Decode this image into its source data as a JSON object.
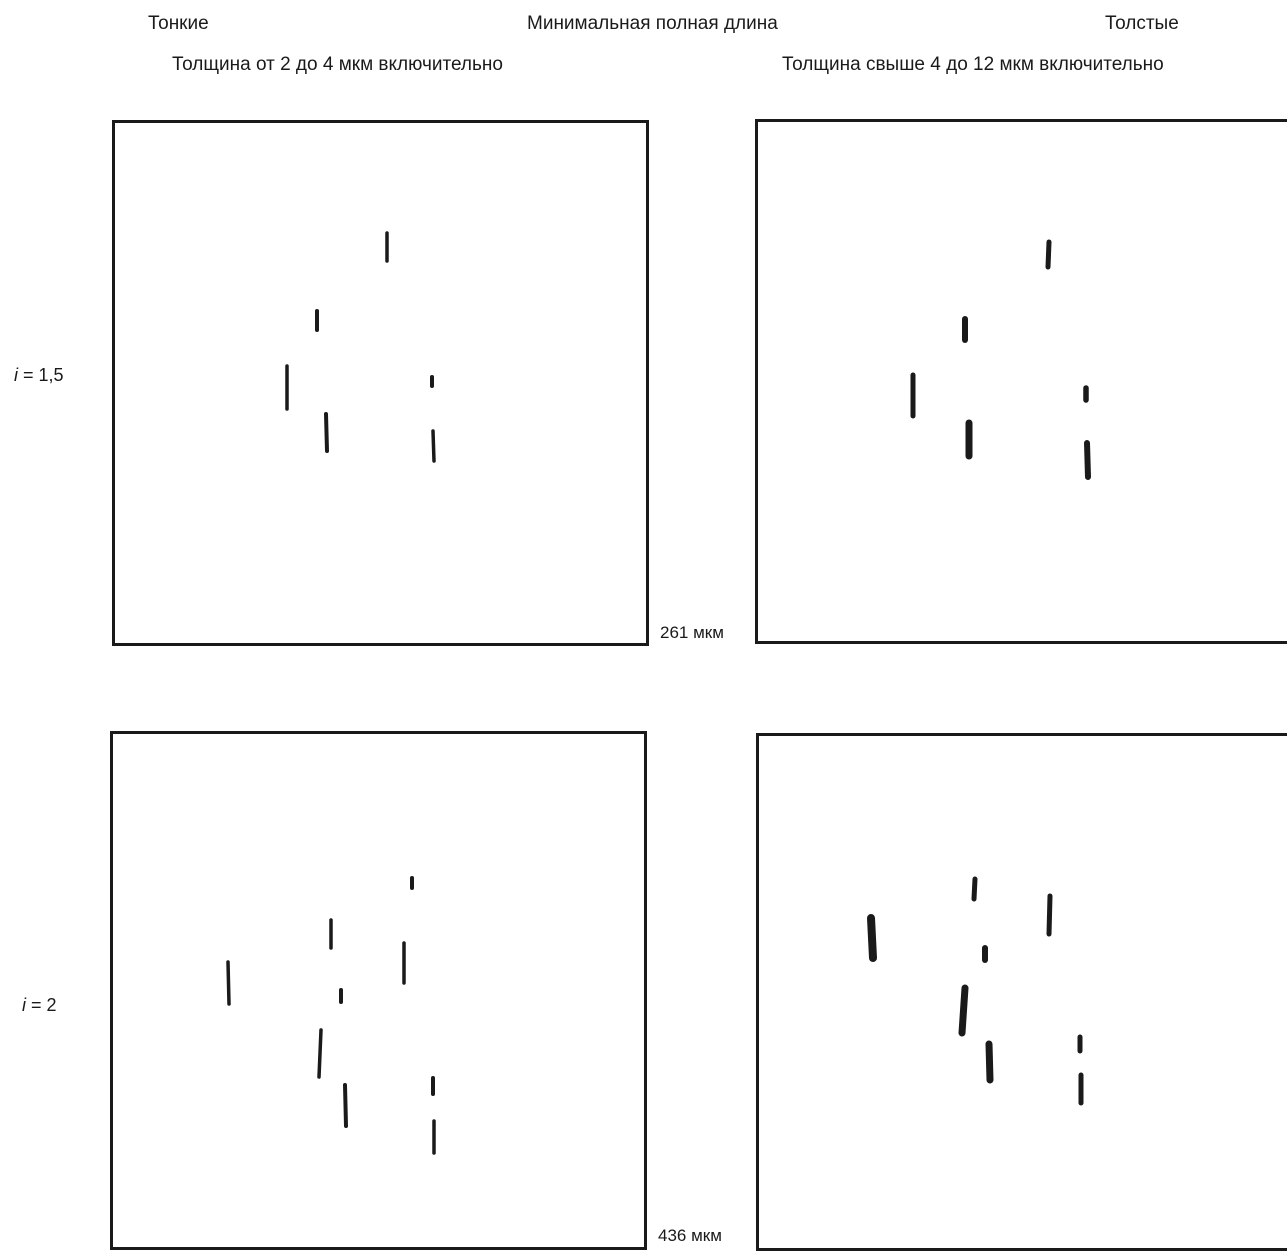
{
  "header": {
    "left_title": "Тонкие",
    "center_title": "Минимальная полная длина",
    "right_title": "Толстые",
    "left_subtitle": "Толщина от 2 до 4 мкм включительно",
    "right_subtitle": "Толщина свыше 4 до 12 мкм включительно"
  },
  "rows": [
    {
      "label_var": "i",
      "label_value": "= 1,5",
      "scale_label": "261 мкм"
    },
    {
      "label_var": "i",
      "label_value": "= 2",
      "scale_label": "436 мкм"
    }
  ],
  "colors": {
    "ink": "#1a1a1a",
    "background": "#ffffff"
  }
}
